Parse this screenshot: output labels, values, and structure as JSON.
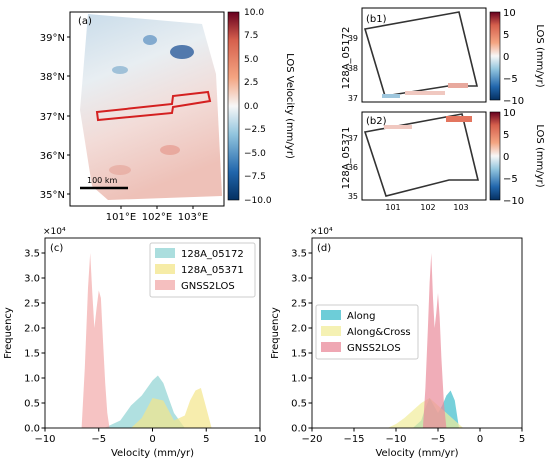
{
  "panels": {
    "a": {
      "label": "(a)",
      "yticks": [
        "39°N",
        "38°N",
        "37°N",
        "36°N",
        "35°N"
      ],
      "xticks": [
        "101°E",
        "102°E",
        "103°E"
      ],
      "scalebar": "100 km",
      "colorbar": {
        "label": "LOS Velocity (mm/yr)",
        "ticks": [
          "10.0",
          "7.5",
          "5.0",
          "2.5",
          "0.0",
          "−2.5",
          "−5.0",
          "−7.5",
          "−10.0"
        ]
      }
    },
    "b1": {
      "label": "(b1)",
      "track": "128A_05172",
      "yticks": [
        "39",
        "38",
        "37"
      ],
      "colorbar": {
        "label": "LOS (mm/yr)",
        "ticks": [
          "10",
          "5",
          "0",
          "−5",
          "−10"
        ]
      }
    },
    "b2": {
      "label": "(b2)",
      "track": "128A_05371",
      "yticks": [
        "37",
        "36",
        "35"
      ],
      "xticks": [
        "101",
        "102",
        "103"
      ],
      "colorbar": {
        "label": "LOS (mm/yr)",
        "ticks": [
          "10",
          "5",
          "0",
          "−5",
          "−10"
        ]
      }
    }
  },
  "colors": {
    "teal": "#8fd3d3",
    "yellow": "#f3e58a",
    "pink": "#f2a9a9",
    "along": "#3cbccb",
    "alongcross": "#f1ec9a",
    "gnss": "#e98a9a",
    "redbox": "#d42020"
  },
  "chart_data": [
    {
      "type": "histogram",
      "panel_label": "(c)",
      "xlabel": "Velocity (mm/yr)",
      "ylabel": "Frequency",
      "xlim": [
        -10,
        10
      ],
      "ylim": [
        0,
        38000
      ],
      "offset_text": "×10⁴",
      "xticks": [
        -10,
        -5,
        0,
        5,
        10
      ],
      "yticks": [
        0,
        5000,
        10000,
        15000,
        20000,
        25000,
        30000,
        35000
      ],
      "ytick_labels": [
        "0.0",
        "0.5",
        "1.0",
        "1.5",
        "2.0",
        "2.5",
        "3.0",
        "3.5"
      ],
      "series": [
        {
          "name": "128A_05172",
          "color": "#8fd3d3",
          "x": [
            -4.5,
            -3,
            -2,
            -1,
            0,
            0.5,
            1,
            1.5,
            2,
            3
          ],
          "y": [
            0,
            1500,
            4500,
            6500,
            9500,
            10500,
            9000,
            6000,
            3000,
            0
          ]
        },
        {
          "name": "128A_05371",
          "color": "#f3e58a",
          "x": [
            -2,
            -1,
            0,
            1,
            2,
            3,
            3.5,
            4,
            4.5,
            5,
            5.5
          ],
          "y": [
            0,
            2000,
            6000,
            5500,
            1500,
            2500,
            5500,
            7500,
            8000,
            4000,
            0
          ]
        },
        {
          "name": "GNSS2LOS",
          "color": "#f2a9a9",
          "x": [
            -6.6,
            -6.3,
            -6,
            -5.8,
            -5.6,
            -5.4,
            -5.2,
            -5,
            -4.8,
            -4.6,
            -4.4,
            -4.2,
            -4
          ],
          "y": [
            0,
            12000,
            28000,
            35000,
            27000,
            20000,
            24000,
            27500,
            26000,
            17000,
            9000,
            3000,
            0
          ]
        }
      ]
    },
    {
      "type": "histogram",
      "panel_label": "(d)",
      "xlabel": "Velocity (mm/yr)",
      "ylabel": "Frequency",
      "xlim": [
        -20,
        5
      ],
      "ylim": [
        0,
        38000
      ],
      "offset_text": "×10⁴",
      "xticks": [
        -20,
        -15,
        -10,
        -5,
        0,
        5
      ],
      "yticks": [
        0,
        5000,
        10000,
        15000,
        20000,
        25000,
        30000,
        35000
      ],
      "ytick_labels": [
        "0.0",
        "0.5",
        "1.0",
        "1.5",
        "2.0",
        "2.5",
        "3.0",
        "3.5"
      ],
      "series": [
        {
          "name": "Along",
          "color": "#3cbccb",
          "x": [
            -8,
            -7,
            -6.5,
            -6,
            -5.5,
            -5,
            -4.5,
            -4,
            -3.5,
            -3,
            -2.5
          ],
          "y": [
            0,
            1500,
            4000,
            6000,
            4500,
            3000,
            4500,
            6500,
            7500,
            5500,
            0
          ]
        },
        {
          "name": "Along&Cross",
          "color": "#f1ec9a",
          "x": [
            -11,
            -10,
            -9,
            -8,
            -7,
            -6,
            -5,
            -4,
            -3,
            -2
          ],
          "y": [
            0,
            800,
            2000,
            3500,
            5000,
            6000,
            4500,
            3000,
            1500,
            0
          ]
        },
        {
          "name": "GNSS2LOS",
          "color": "#e98a9a",
          "x": [
            -6.8,
            -6.5,
            -6.2,
            -6,
            -5.8,
            -5.6,
            -5.4,
            -5.2,
            -5,
            -4.8,
            -4.6,
            -4.3,
            -4
          ],
          "y": [
            0,
            8000,
            20000,
            29000,
            35000,
            26000,
            20000,
            23000,
            27000,
            22000,
            14000,
            5000,
            0
          ]
        }
      ]
    }
  ]
}
